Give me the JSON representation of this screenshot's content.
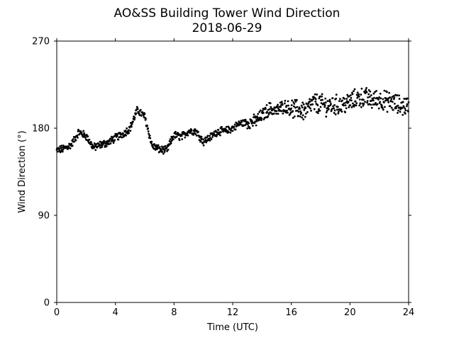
{
  "chart_data": {
    "type": "scatter",
    "title": "AO&SS Building Tower Wind Direction",
    "subtitle": "2018-06-29",
    "xlabel": "Time (UTC)",
    "ylabel": "Wind Direction (°)",
    "xlim": [
      0,
      24
    ],
    "ylim": [
      0,
      270
    ],
    "xticks": [
      0,
      4,
      8,
      12,
      16,
      20,
      24
    ],
    "yticks": [
      0,
      90,
      180,
      270
    ],
    "grid": false,
    "marker_color": "#000000",
    "trend": {
      "x": [
        0,
        0.5,
        1.0,
        1.5,
        2.0,
        2.5,
        3.0,
        3.5,
        4.0,
        4.5,
        5.0,
        5.5,
        6.0,
        6.5,
        7.0,
        7.5,
        8.0,
        8.5,
        9.0,
        9.5,
        10.0,
        10.5,
        11.0,
        11.5,
        12.0,
        12.5,
        13.0,
        13.5,
        14.0,
        14.5,
        15.0,
        15.5,
        16.0,
        16.5,
        17.0,
        17.5,
        18.0,
        18.5,
        19.0,
        19.5,
        20.0,
        20.5,
        21.0,
        21.5,
        22.0,
        22.5,
        23.0,
        23.5,
        24.0
      ],
      "y": [
        157,
        159,
        163,
        176,
        172,
        160,
        163,
        165,
        170,
        174,
        180,
        199,
        192,
        162,
        158,
        157,
        173,
        171,
        177,
        177,
        166,
        171,
        177,
        177,
        180,
        185,
        186,
        187,
        193,
        200,
        198,
        203,
        200,
        199,
        198,
        206,
        205,
        203,
        204,
        204,
        207,
        211,
        212,
        209,
        210,
        208,
        206,
        203,
        203
      ]
    },
    "scatter": {
      "sample_interval_minutes": 1.5,
      "points_per_hour": 40
    }
  }
}
